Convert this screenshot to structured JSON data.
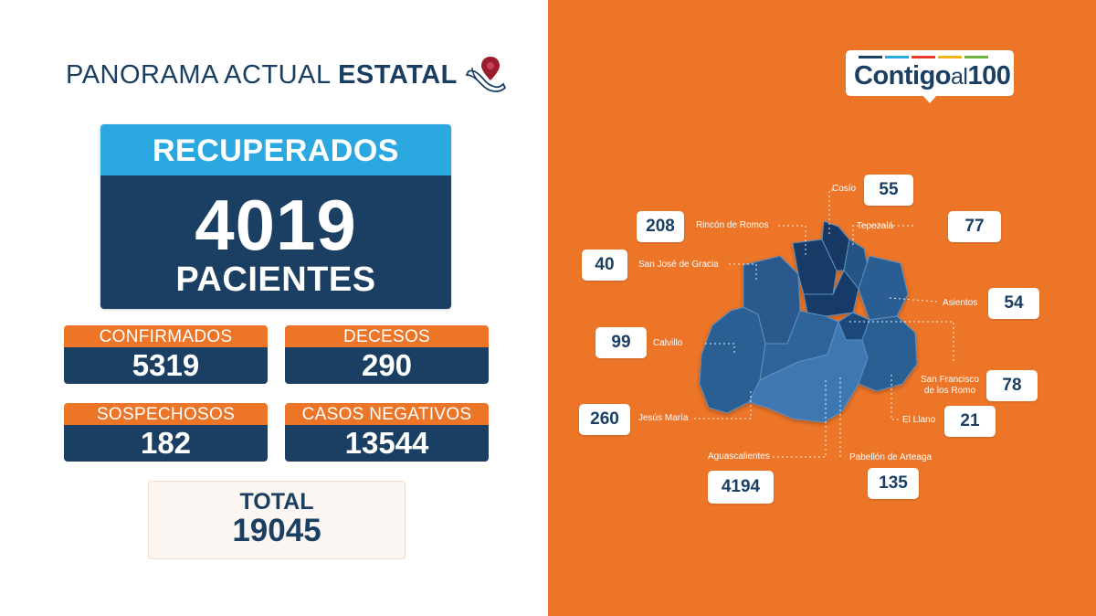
{
  "header": {
    "title_light": "PANORAMA ACTUAL ",
    "title_bold": "ESTATAL",
    "icon": "mexico-map-pin-icon"
  },
  "recuperados": {
    "label": "RECUPERADOS",
    "value": "4019",
    "unit": "PACIENTES"
  },
  "stats": {
    "confirmados": {
      "label": "CONFIRMADOS",
      "value": "5319"
    },
    "decesos": {
      "label": "DECESOS",
      "value": "290"
    },
    "sospechosos": {
      "label": "SOSPECHOSOS",
      "value": "182"
    },
    "negativos": {
      "label": "CASOS NEGATIVOS",
      "value": "13544"
    }
  },
  "total": {
    "label": "TOTAL",
    "value": "19045"
  },
  "logo": {
    "text_main": "Contigo",
    "text_al": "al",
    "text_num": "100",
    "bar_colors": [
      "#1b3f63",
      "#2ba8df",
      "#e63a2e",
      "#f4b21b",
      "#6cb33f"
    ]
  },
  "colors": {
    "navy": "#1b3f63",
    "sky": "#2ba8df",
    "orange": "#ec7528"
  },
  "municipios": {
    "cosio": {
      "name": "Cosío",
      "value": "55"
    },
    "rincon": {
      "name": "Rincón de Romos",
      "value": "208"
    },
    "tepezala": {
      "name": "Tepezalá",
      "value": "77"
    },
    "sanjose": {
      "name": "San José de Gracia",
      "value": "40"
    },
    "asientos": {
      "name": "Asientos",
      "value": "54"
    },
    "calvillo": {
      "name": "Calvillo",
      "value": "99"
    },
    "sanfrancisco": {
      "name_line1": "San Francisco",
      "name_line2": "de los Romo",
      "value": "78"
    },
    "jesusmaria": {
      "name": "Jesús María",
      "value": "260"
    },
    "elllano": {
      "name": "El Llano",
      "value": "21"
    },
    "aguascalientes": {
      "name": "Aguascalientes",
      "value": "4194"
    },
    "pabellon": {
      "name": "Pabellón de Arteaga",
      "value": "135"
    }
  }
}
